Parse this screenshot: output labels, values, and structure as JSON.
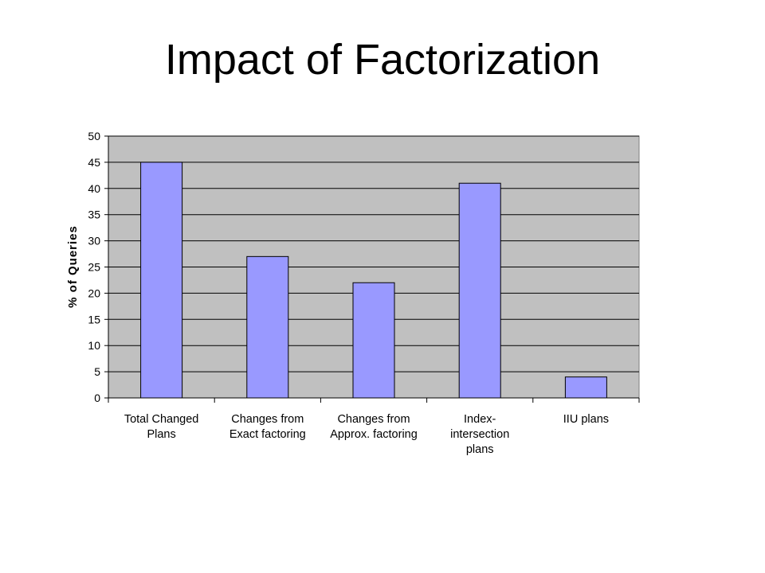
{
  "slide": {
    "title": "Impact of Factorization"
  },
  "chart_data": {
    "type": "bar",
    "title": "",
    "categories": [
      [
        "Total Changed",
        "Plans"
      ],
      [
        "Changes from",
        "Exact factoring"
      ],
      [
        "Changes from",
        "Approx. factoring"
      ],
      [
        "Index-",
        "intersection",
        "plans"
      ],
      [
        "IIU plans"
      ]
    ],
    "values": [
      45,
      27,
      22,
      41,
      4
    ],
    "xlabel": "",
    "ylabel": "% of Queries",
    "ylim": [
      0,
      50
    ],
    "yticks": [
      0,
      5,
      10,
      15,
      20,
      25,
      30,
      35,
      40,
      45,
      50
    ],
    "grid": true,
    "legend": "none",
    "colors": {
      "bar_fill": "#9999ff",
      "plot_background": "#c0c0c0",
      "gridline": "#000000"
    }
  }
}
